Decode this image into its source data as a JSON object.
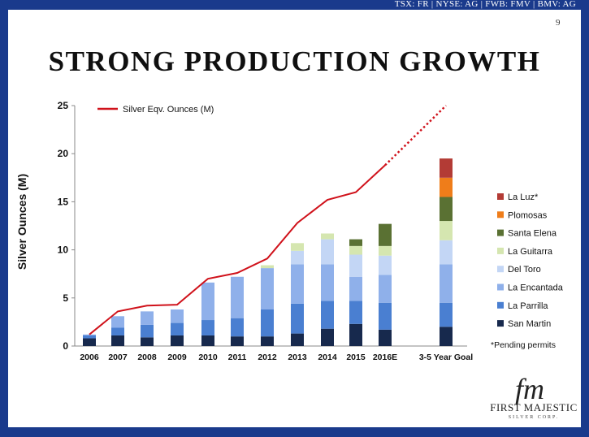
{
  "header": {
    "ticker": "TSX: FR  |  NYSE: AG  |  FWB: FMV  |  BMV: AG",
    "page_number": "9"
  },
  "slide": {
    "title": "STRONG PRODUCTION GROWTH"
  },
  "chart_data": {
    "type": "bar",
    "ylabel": "Silver Ounces (M)",
    "ylim": [
      0,
      25
    ],
    "yticks": [
      "0",
      "5",
      "10",
      "15",
      "20",
      "25"
    ],
    "categories": [
      "2006",
      "2007",
      "2008",
      "2009",
      "2010",
      "2011",
      "2012",
      "2013",
      "2014",
      "2015",
      "2016E",
      "3-5 Year Goal"
    ],
    "series": [
      {
        "name": "San Martin",
        "color": "#17294d",
        "values": [
          0.8,
          1.1,
          0.9,
          1.1,
          1.1,
          1.0,
          1.0,
          1.3,
          1.8,
          2.3,
          1.7,
          2.0
        ]
      },
      {
        "name": "La Parrilla",
        "color": "#4a7fd1",
        "values": [
          0.3,
          0.8,
          1.3,
          1.3,
          1.6,
          1.9,
          2.8,
          3.1,
          2.9,
          2.4,
          2.8,
          2.5
        ]
      },
      {
        "name": "La Encantada",
        "color": "#8fb0ea",
        "values": [
          0.1,
          1.2,
          1.4,
          1.4,
          3.9,
          4.3,
          4.3,
          4.1,
          3.8,
          2.5,
          2.9,
          4.0
        ]
      },
      {
        "name": "Del Toro",
        "color": "#c3d6f5",
        "values": [
          0,
          0,
          0,
          0,
          0,
          0,
          0,
          1.4,
          2.6,
          2.3,
          2.0,
          2.5
        ]
      },
      {
        "name": "La Guitarra",
        "color": "#d5e6b0",
        "values": [
          0,
          0,
          0,
          0,
          0,
          0,
          0.3,
          0.8,
          0.6,
          0.9,
          1.0,
          2.0
        ]
      },
      {
        "name": "Santa Elena",
        "color": "#5a7133",
        "values": [
          0,
          0,
          0,
          0,
          0,
          0,
          0,
          0,
          0,
          0.7,
          2.3,
          2.5
        ]
      },
      {
        "name": "Plomosas",
        "color": "#ef7d1a",
        "values": [
          0,
          0,
          0,
          0,
          0,
          0,
          0,
          0,
          0,
          0,
          0,
          2.0
        ]
      },
      {
        "name": "La Luz*",
        "color": "#b33b35",
        "values": [
          0,
          0,
          0,
          0,
          0,
          0,
          0,
          0,
          0,
          0,
          0,
          2.0
        ]
      }
    ],
    "line": {
      "name": "Silver Eqv. Ounces (M)",
      "color": "#d0121b",
      "values": [
        1.2,
        3.6,
        4.2,
        4.3,
        7.0,
        7.6,
        9.1,
        12.8,
        15.2,
        16.0,
        18.8,
        25.0
      ],
      "dotted_from_index": 10
    },
    "legend_position": "right",
    "footnote": "*Pending permits"
  },
  "logo": {
    "mark": "fm",
    "name": "FIRST MAJESTIC",
    "sub": "SILVER CORP."
  }
}
